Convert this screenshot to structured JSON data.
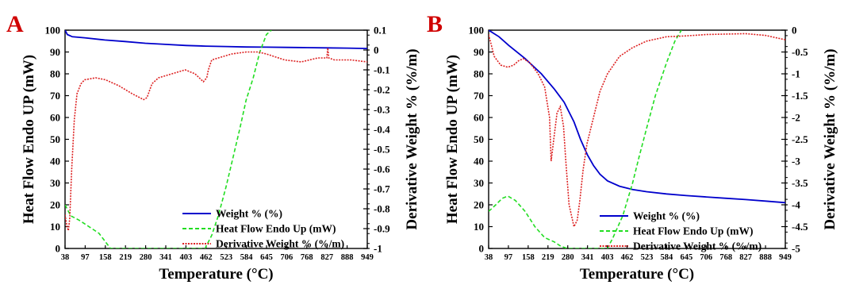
{
  "chart_data": [
    {
      "type": "line",
      "panel_label": "A",
      "xlabel": "Temperature (°C)",
      "ylabel_left": "Heat Flow Endo UP (mW)",
      "ylabel_right": "Derivative Weight % (%/m)",
      "x_ticks": [
        "38",
        "97",
        "158",
        "219",
        "280",
        "341",
        "403",
        "462",
        "523",
        "584",
        "645",
        "706",
        "768",
        "827",
        "888",
        "949"
      ],
      "xlim": [
        38,
        949
      ],
      "ylim_left": [
        0,
        100
      ],
      "y_ticks_left": [
        "0",
        "10",
        "20",
        "30",
        "40",
        "50",
        "60",
        "70",
        "80",
        "90",
        "100"
      ],
      "ylim_right": [
        -1,
        0.1
      ],
      "y_ticks_right": [
        "0.1",
        "0",
        "-0.1",
        "-0.2",
        "-0.3",
        "-0.4",
        "-0.5",
        "-0.6",
        "-0.7",
        "-0.8",
        "-0.9",
        "-1"
      ],
      "legend_position": "bottom-right",
      "series": [
        {
          "name": "Weight % (%)",
          "color": "#0000cc",
          "style": "solid",
          "axis": "left",
          "x": [
            38,
            45,
            60,
            97,
            158,
            219,
            280,
            341,
            403,
            462,
            523,
            584,
            645,
            706,
            768,
            827,
            888,
            949
          ],
          "y": [
            100,
            98,
            97,
            96.5,
            95.5,
            94.8,
            94,
            93.5,
            93,
            92.7,
            92.5,
            92.3,
            92.2,
            92.1,
            92,
            91.9,
            91.8,
            91.6
          ]
        },
        {
          "name": "Heat Flow Endo Up (mW)",
          "color": "#22dd22",
          "style": "dashed",
          "axis": "left",
          "x": [
            38,
            55,
            80,
            110,
            140,
            165,
            175,
            460,
            480,
            500,
            523,
            545,
            565,
            584,
            605,
            625,
            645,
            660
          ],
          "y": [
            20,
            15,
            13,
            10,
            7,
            2,
            0,
            0,
            6,
            15,
            28,
            42,
            55,
            68,
            78,
            90,
            98,
            100
          ]
        },
        {
          "name": "Derivative Weight % (%/m)",
          "color": "#dd2222",
          "style": "dotted",
          "axis": "right",
          "x": [
            38,
            44,
            48,
            52,
            58,
            66,
            74,
            86,
            97,
            130,
            160,
            200,
            240,
            275,
            285,
            300,
            320,
            360,
            400,
            430,
            455,
            465,
            470,
            480,
            500,
            540,
            584,
            620,
            645,
            700,
            750,
            800,
            827,
            830,
            833,
            850,
            900,
            949
          ],
          "y": [
            -0.83,
            -0.89,
            -0.91,
            -0.85,
            -0.6,
            -0.35,
            -0.22,
            -0.17,
            -0.15,
            -0.14,
            -0.15,
            -0.18,
            -0.22,
            -0.25,
            -0.24,
            -0.17,
            -0.14,
            -0.12,
            -0.1,
            -0.12,
            -0.16,
            -0.14,
            -0.1,
            -0.05,
            -0.04,
            -0.02,
            -0.01,
            -0.01,
            -0.02,
            -0.05,
            -0.06,
            -0.04,
            -0.04,
            0.01,
            -0.04,
            -0.05,
            -0.05,
            -0.06
          ]
        }
      ]
    },
    {
      "type": "line",
      "panel_label": "B",
      "xlabel": "Temperature (°C)",
      "ylabel_left": "Heat Flow Endo UP (mW)",
      "ylabel_right": "Derivative Weight % (%/m)",
      "x_ticks": [
        "38",
        "97",
        "158",
        "219",
        "280",
        "341",
        "403",
        "462",
        "523",
        "584",
        "645",
        "706",
        "768",
        "827",
        "888",
        "949"
      ],
      "xlim": [
        38,
        949
      ],
      "ylim_left": [
        0,
        100
      ],
      "y_ticks_left": [
        "0",
        "10",
        "20",
        "30",
        "40",
        "50",
        "60",
        "70",
        "80",
        "90",
        "100"
      ],
      "ylim_right": [
        -5,
        0
      ],
      "y_ticks_right": [
        "0",
        "-0.5",
        "-1",
        "-1.5",
        "-2",
        "-2.5",
        "-3",
        "-3.5",
        "-4",
        "-4.5",
        "-5"
      ],
      "legend_position": "bottom-right",
      "series": [
        {
          "name": "Weight % (%)",
          "color": "#0000cc",
          "style": "solid",
          "axis": "left",
          "x": [
            38,
            70,
            100,
            150,
            200,
            240,
            270,
            300,
            320,
            341,
            360,
            380,
            403,
            440,
            480,
            523,
            584,
            645,
            706,
            768,
            827,
            888,
            949
          ],
          "y": [
            100,
            97,
            93,
            87,
            80,
            73,
            67,
            58,
            50,
            43,
            38,
            34,
            31,
            28.5,
            27,
            26,
            25,
            24.2,
            23.6,
            23,
            22.4,
            21.7,
            21
          ]
        },
        {
          "name": "Heat Flow Endo Up (mW)",
          "color": "#22dd22",
          "style": "dashed",
          "axis": "left",
          "x": [
            38,
            60,
            80,
            97,
            120,
            150,
            180,
            210,
            240,
            260,
            270,
            280,
            403,
            420,
            450,
            480,
            500,
            523,
            550,
            584,
            610,
            630
          ],
          "y": [
            17,
            20,
            23,
            24,
            22,
            17,
            10,
            5,
            3,
            1,
            0.5,
            0,
            0,
            5,
            15,
            30,
            42,
            55,
            70,
            85,
            95,
            100
          ]
        },
        {
          "name": "Derivative Weight % (%/m)",
          "color": "#dd2222",
          "style": "dotted",
          "axis": "right",
          "x": [
            38,
            55,
            75,
            97,
            115,
            130,
            145,
            165,
            190,
            210,
            225,
            230,
            238,
            248,
            258,
            268,
            275,
            285,
            300,
            310,
            318,
            328,
            340,
            360,
            380,
            403,
            440,
            480,
            523,
            584,
            645,
            706,
            768,
            827,
            888,
            949
          ],
          "y": [
            -0.1,
            -0.6,
            -0.8,
            -0.85,
            -0.8,
            -0.7,
            -0.65,
            -0.75,
            -1.0,
            -1.3,
            -2.0,
            -3.0,
            -2.5,
            -1.9,
            -1.75,
            -2.2,
            -3.0,
            -4.0,
            -4.5,
            -4.35,
            -3.9,
            -3.2,
            -2.6,
            -2.0,
            -1.4,
            -1.0,
            -0.6,
            -0.4,
            -0.25,
            -0.15,
            -0.13,
            -0.1,
            -0.09,
            -0.08,
            -0.12,
            -0.22
          ]
        }
      ]
    }
  ]
}
